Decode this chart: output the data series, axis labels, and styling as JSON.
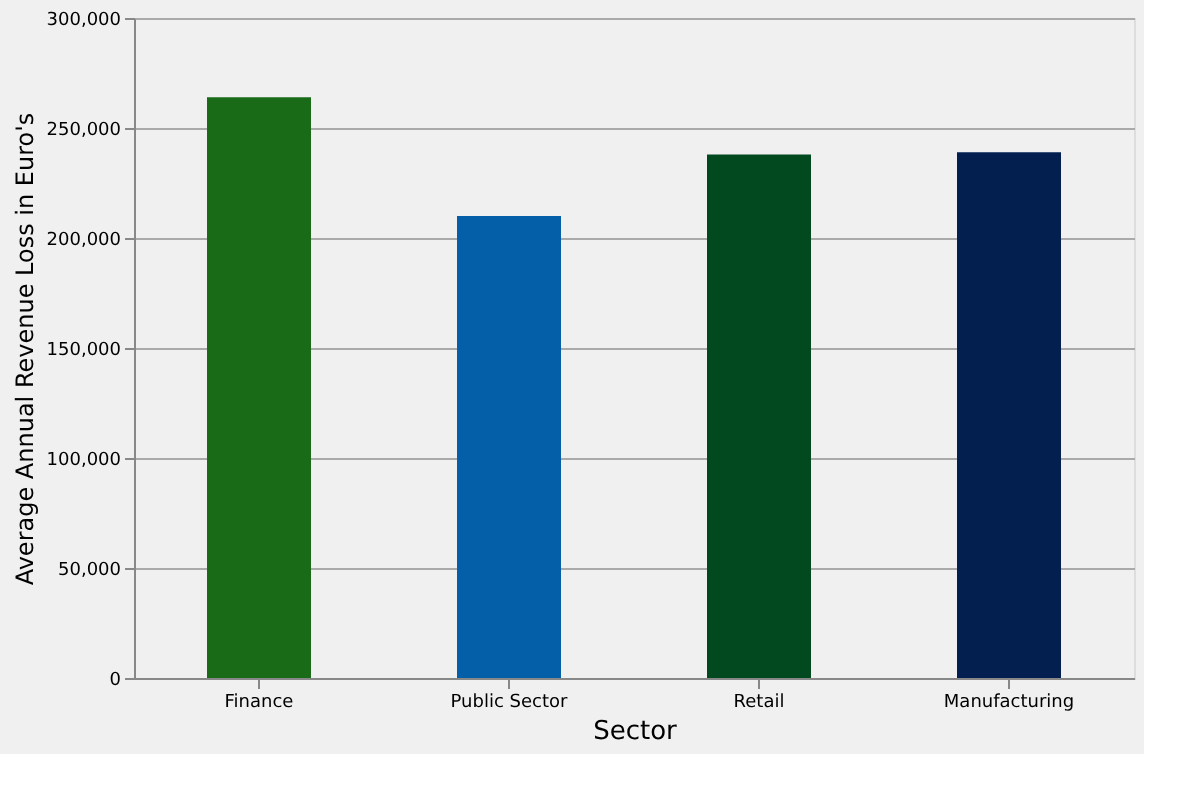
{
  "chart_data": {
    "type": "bar",
    "xlabel": "Sector",
    "ylabel": "Average Annual Revenue Loss in Euro's",
    "categories": [
      "Finance",
      "Public Sector",
      "Retail",
      "Manufacturing"
    ],
    "values": [
      264000,
      210000,
      238000,
      239000
    ],
    "colors": [
      "#1a6b17",
      "#045ea8",
      "#03491f",
      "#021f4f"
    ],
    "ylim": [
      0,
      300000
    ],
    "yticks": [
      0,
      {
        "value": 50000,
        "label": "50,000"
      },
      {
        "value": 100000,
        "label": "100,000"
      },
      {
        "value": 150000,
        "label": "150,000"
      },
      {
        "value": 200000,
        "label": "200,000"
      },
      {
        "value": 250000,
        "label": "250,000"
      },
      {
        "value": 300000,
        "label": "300,000"
      }
    ],
    "grid": "y"
  }
}
